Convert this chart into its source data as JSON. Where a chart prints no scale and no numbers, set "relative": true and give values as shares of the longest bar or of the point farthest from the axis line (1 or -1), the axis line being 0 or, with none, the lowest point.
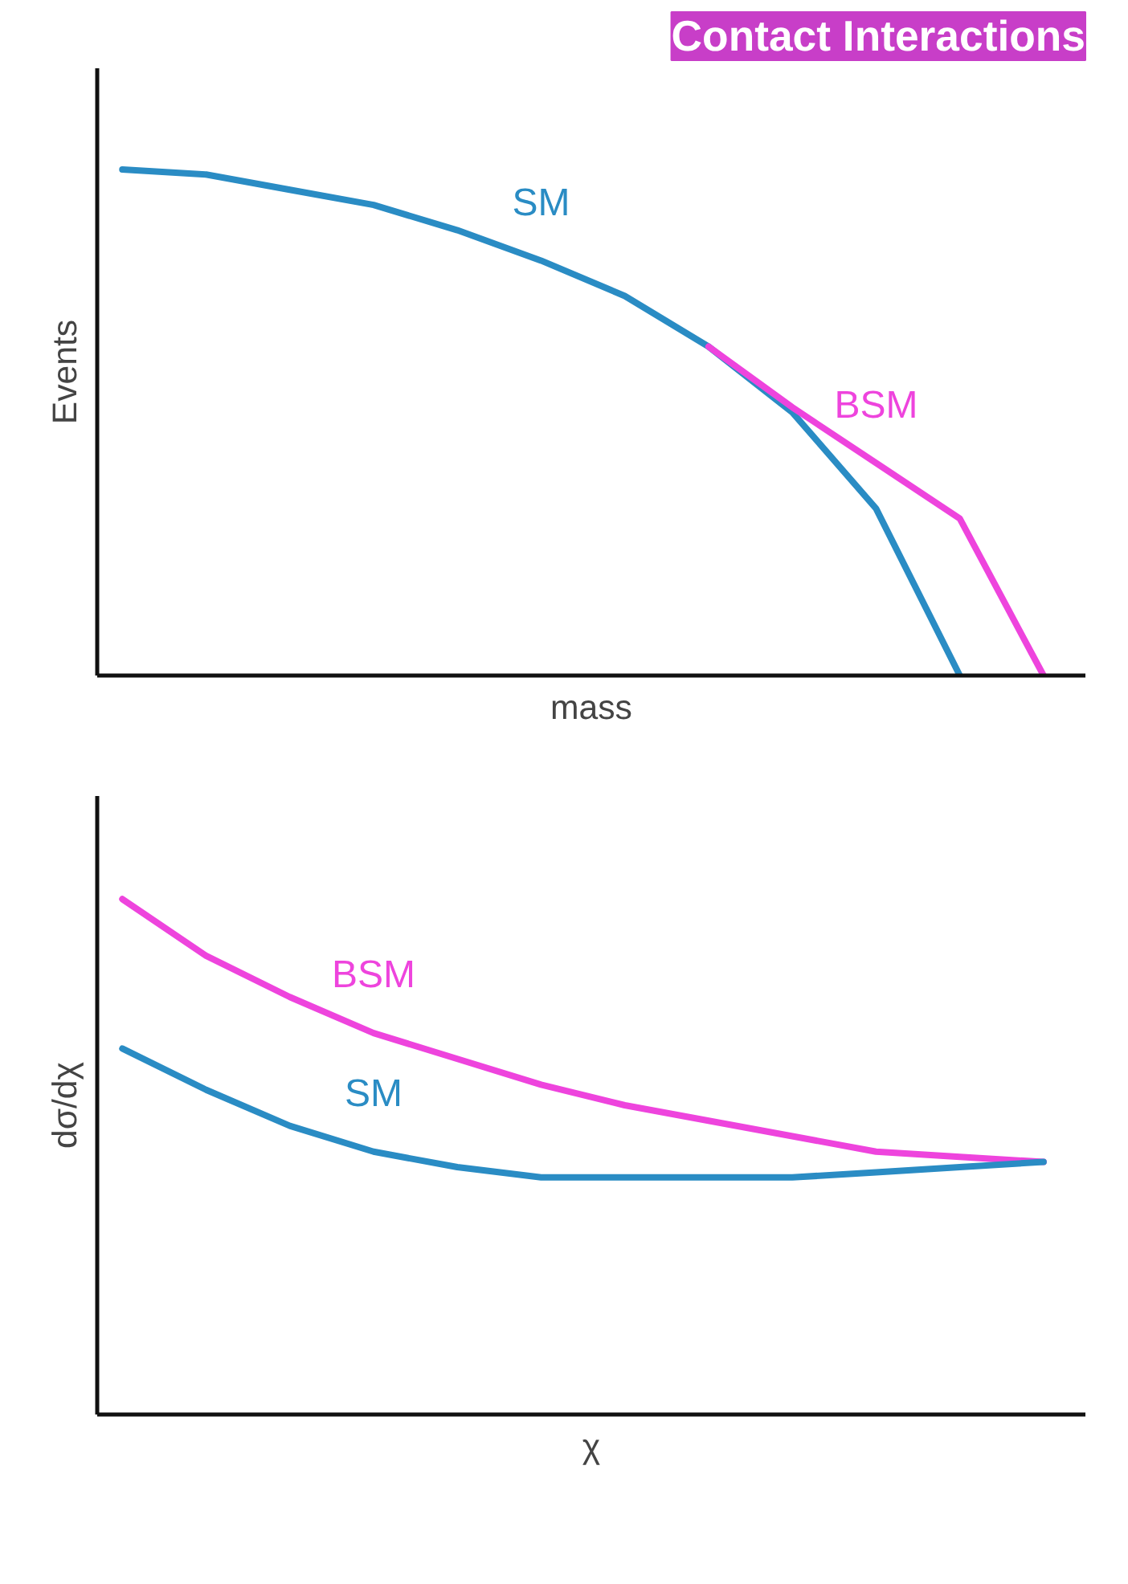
{
  "chart_data": [
    {
      "type": "line",
      "title": "Contact Interactions",
      "xlabel": "mass",
      "ylabel": "Events",
      "relative": true,
      "categories": [
        null,
        null,
        null,
        null,
        null,
        null,
        null,
        null,
        null,
        null,
        null,
        null
      ],
      "series": [
        {
          "name": "SM",
          "color": "#2a8cc4",
          "values": [
            1,
            0.99,
            0.96,
            0.93,
            0.88,
            0.82,
            0.75,
            0.65,
            0.52,
            0.33,
            0,
            null
          ]
        },
        {
          "name": "BSM",
          "color": "#ee44dd",
          "values": [
            null,
            null,
            null,
            null,
            null,
            null,
            null,
            0.65,
            0.53,
            0.42,
            0.31,
            0
          ]
        }
      ]
    },
    {
      "type": "line",
      "xlabel": "χ",
      "ylabel": "dσ/dχ",
      "relative": true,
      "categories": [
        null,
        null,
        null,
        null,
        null,
        null,
        null,
        null,
        null,
        null,
        null,
        null
      ],
      "series": [
        {
          "name": "BSM",
          "color": "#ee44dd",
          "values": [
            1,
            0.89,
            0.81,
            0.74,
            0.69,
            0.64,
            0.6,
            0.57,
            0.54,
            0.51,
            0.5,
            0.49
          ]
        },
        {
          "name": "SM",
          "color": "#2a8cc4",
          "values": [
            0.71,
            0.63,
            0.56,
            0.51,
            0.48,
            0.46,
            0.46,
            0.46,
            0.46,
            0.47,
            0.48,
            0.49
          ]
        }
      ]
    }
  ]
}
